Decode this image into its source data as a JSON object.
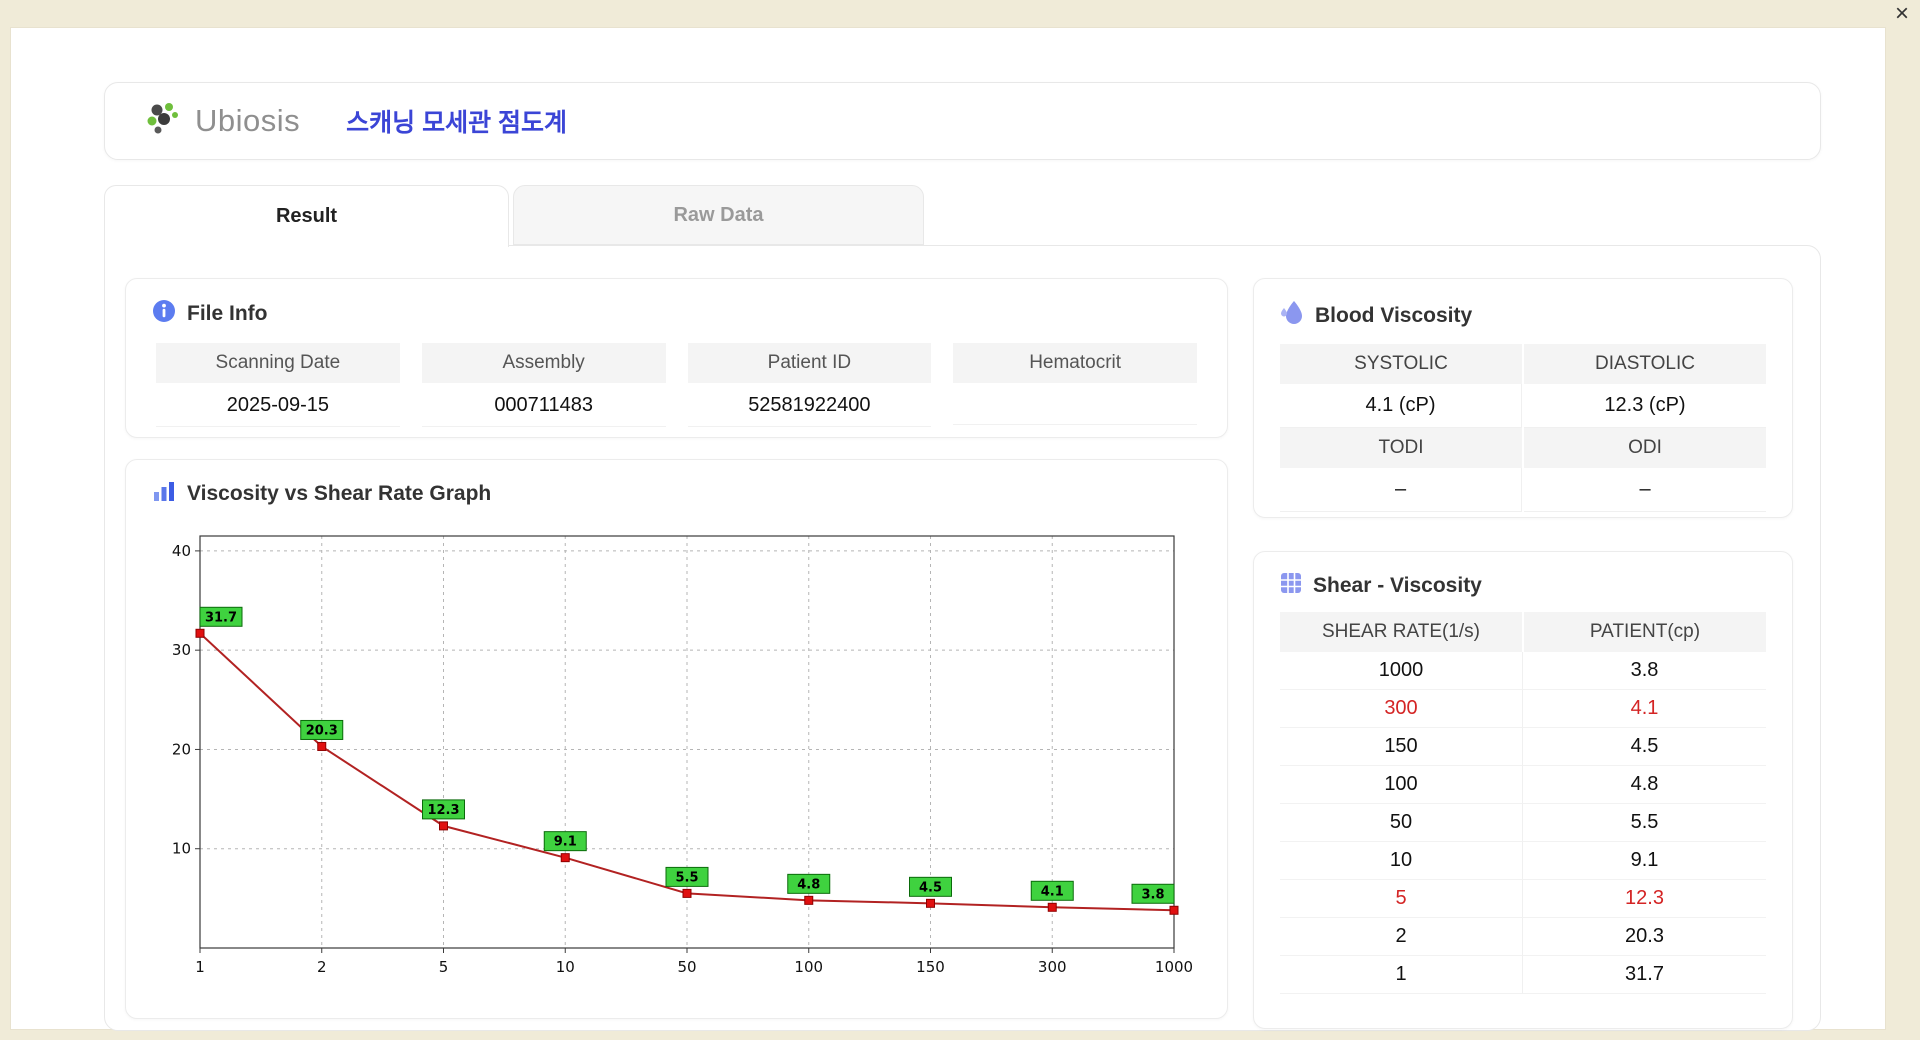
{
  "window": {
    "close_label": "×"
  },
  "header": {
    "logo_text": "Ubiosis",
    "title": "스캐닝 모세관 점도계"
  },
  "tabs": [
    {
      "label": "Result",
      "active": true
    },
    {
      "label": "Raw Data",
      "active": false
    }
  ],
  "file_info": {
    "section_title": "File Info",
    "fields": [
      {
        "label": "Scanning Date",
        "value": "2025-09-15"
      },
      {
        "label": "Assembly",
        "value": "000711483"
      },
      {
        "label": "Patient ID",
        "value": "52581922400"
      },
      {
        "label": "Hematocrit",
        "value": ""
      }
    ]
  },
  "graph_section": {
    "section_title": "Viscosity vs Shear Rate Graph"
  },
  "chart_data": {
    "type": "line",
    "title": "Viscosity vs Shear Rate Graph",
    "x_categories": [
      "1",
      "2",
      "5",
      "10",
      "50",
      "100",
      "150",
      "300",
      "1000"
    ],
    "values": [
      31.7,
      20.3,
      12.3,
      9.1,
      5.5,
      4.8,
      4.5,
      4.1,
      3.8
    ],
    "point_labels": [
      "31.7",
      "20.3",
      "12.3",
      "9.1",
      "5.5",
      "4.8",
      "4.5",
      "4.1",
      "3.8"
    ],
    "y_ticks": [
      10,
      20,
      30,
      40
    ],
    "ylim": [
      0,
      41.5
    ],
    "xlabel": "",
    "ylabel": "",
    "grid": "dashed",
    "legend": "none",
    "line_color": "#b22222",
    "marker_color": "#e01010",
    "label_bg": "#3fd23f"
  },
  "blood_viscosity": {
    "section_title": "Blood Viscosity",
    "rows": [
      {
        "labels": [
          "SYSTOLIC",
          "DIASTOLIC"
        ],
        "values": [
          "4.1 (cP)",
          "12.3 (cP)"
        ]
      },
      {
        "labels": [
          "TODI",
          "ODI"
        ],
        "values": [
          "–",
          "–"
        ]
      }
    ]
  },
  "shear_viscosity": {
    "section_title": "Shear - Viscosity",
    "columns": [
      "SHEAR RATE(1/s)",
      "PATIENT(cp)"
    ],
    "rows": [
      {
        "shear": "1000",
        "patient": "3.8",
        "highlight": false
      },
      {
        "shear": "300",
        "patient": "4.1",
        "highlight": true
      },
      {
        "shear": "150",
        "patient": "4.5",
        "highlight": false
      },
      {
        "shear": "100",
        "patient": "4.8",
        "highlight": false
      },
      {
        "shear": "50",
        "patient": "5.5",
        "highlight": false
      },
      {
        "shear": "10",
        "patient": "9.1",
        "highlight": false
      },
      {
        "shear": "5",
        "patient": "12.3",
        "highlight": true
      },
      {
        "shear": "2",
        "patient": "20.3",
        "highlight": false
      },
      {
        "shear": "1",
        "patient": "31.7",
        "highlight": false
      }
    ]
  },
  "colors": {
    "accent_blue": "#3b45d6",
    "icon_blue": "#5c7cf0",
    "icon_purple_blue": "#8b97ef",
    "highlight_red": "#d42424",
    "frame_beige": "#f0ebd8",
    "chart_line_red": "#b22222",
    "chart_label_green": "#3fd23f"
  }
}
